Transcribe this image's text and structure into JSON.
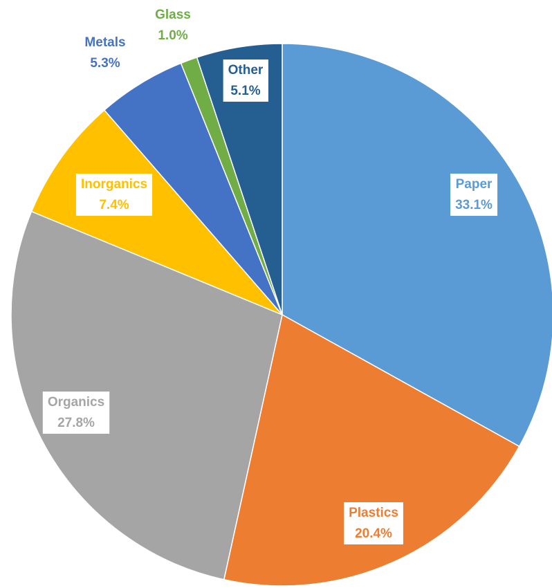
{
  "chart_data": {
    "type": "pie",
    "categories": [
      "Paper",
      "Plastics",
      "Organics",
      "Inorganics",
      "Metals",
      "Glass",
      "Other"
    ],
    "values": [
      33.1,
      20.4,
      27.8,
      7.4,
      5.3,
      1.0,
      5.1
    ],
    "value_labels": [
      "33.1%",
      "20.4%",
      "27.8%",
      "7.4%",
      "5.3%",
      "1.0%",
      "5.1%"
    ],
    "colors": [
      "#5b9bd5",
      "#ed7d31",
      "#a5a5a5",
      "#ffc000",
      "#4472c4",
      "#70ad47",
      "#255e91"
    ]
  }
}
